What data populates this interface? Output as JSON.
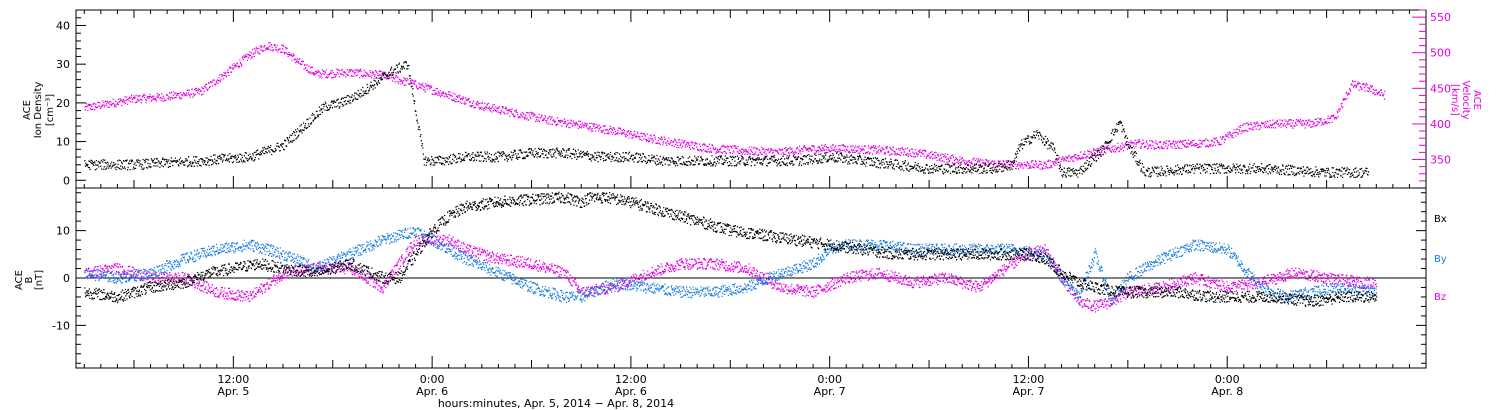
{
  "colors": {
    "black": "#000000",
    "magenta": "#e400e4",
    "blue": "#1a7fe0"
  },
  "top_panel": {
    "ylabel_lines": [
      "ACE",
      "Ion Density",
      "[cm⁻³]"
    ],
    "y2label_lines": [
      "ACE",
      "Velocity",
      "[km/s]"
    ]
  },
  "bottom_panel": {
    "ylabel_lines": [
      "ACE",
      "B",
      "[nT]"
    ],
    "legend": [
      "Bx",
      "By",
      "Bz"
    ]
  },
  "xaxis": {
    "ticks": [
      {
        "time": "12:00",
        "date": "Apr. 5"
      },
      {
        "time": "0:00",
        "date": "Apr. 6"
      },
      {
        "time": "12:00",
        "date": "Apr. 6"
      },
      {
        "time": "0:00",
        "date": "Apr. 7"
      },
      {
        "time": "12:00",
        "date": "Apr. 7"
      },
      {
        "time": "0:00",
        "date": "Apr. 8"
      }
    ],
    "title": "hours:minutes, Apr.  5, 2014 − Apr.  8, 2014"
  },
  "chart_data": [
    {
      "type": "scatter",
      "panel": "top",
      "xlabel": "hours:minutes, Apr.  5, 2014 − Apr.  8, 2014",
      "ylabel": "ACE Ion Density [cm⁻³]",
      "y2label": "ACE Velocity [km/s]",
      "xlim": [
        2.5,
        84
      ],
      "ylim": [
        -2,
        44
      ],
      "y_ticks": [
        0,
        10,
        20,
        30,
        40
      ],
      "y2lim": [
        310,
        560
      ],
      "y2_ticks": [
        350,
        400,
        450,
        500,
        550
      ],
      "x_unit": "hours from 0:00 Apr. 5, 2014",
      "series": [
        {
          "axis": "left",
          "color": "#000000",
          "x": [
            3,
            6,
            10,
            13,
            15,
            16.5,
            17.5,
            18.5,
            19.5,
            20.5,
            21.5,
            22.5,
            23.5,
            24.5,
            26,
            28,
            30,
            32,
            34,
            36,
            38,
            40,
            42,
            44,
            46,
            48,
            50,
            52,
            54,
            56,
            58,
            59,
            59.5,
            60.5,
            61.5,
            62,
            63,
            64.5,
            65.5,
            66,
            67,
            70,
            74,
            78,
            80.5
          ],
          "y": [
            4,
            4,
            5,
            6,
            9,
            15,
            19,
            20,
            22,
            25,
            28,
            30,
            5,
            5,
            6,
            6,
            7,
            7,
            6,
            6,
            5,
            5,
            5,
            5,
            5,
            6,
            5,
            4,
            3,
            3,
            3,
            4,
            9,
            12,
            8,
            2,
            2,
            8,
            15,
            9,
            2,
            3,
            3,
            2,
            2
          ]
        },
        {
          "axis": "right",
          "color": "#e400e4",
          "x": [
            3,
            6,
            8,
            10,
            11.5,
            13,
            14,
            15,
            16,
            17,
            19,
            21,
            23,
            25,
            27,
            29,
            31,
            33,
            35,
            37,
            39,
            41,
            43,
            45,
            47,
            49,
            51,
            53,
            55,
            57,
            59,
            61,
            63,
            65,
            66.5,
            68,
            70,
            71.5,
            73,
            75,
            77,
            78.5,
            79.5,
            80.5,
            81.5
          ],
          "y": [
            422,
            435,
            438,
            445,
            470,
            497,
            510,
            505,
            485,
            470,
            472,
            468,
            455,
            440,
            425,
            415,
            405,
            398,
            390,
            380,
            372,
            365,
            362,
            360,
            365,
            365,
            363,
            360,
            352,
            345,
            343,
            342,
            355,
            365,
            372,
            370,
            372,
            375,
            395,
            400,
            400,
            408,
            455,
            450,
            440
          ]
        }
      ]
    },
    {
      "type": "line",
      "panel": "bottom",
      "ylabel": "ACE B [nT]",
      "xlim": [
        2.5,
        84
      ],
      "ylim": [
        -19,
        19
      ],
      "y_ticks": [
        -10,
        0,
        10
      ],
      "x_unit": "hours from 0:00 Apr. 5, 2014",
      "series": [
        {
          "name": "Bx",
          "color": "#000000",
          "x": [
            3,
            5,
            7,
            9,
            10.5,
            12,
            13.5,
            15,
            17,
            19,
            21,
            22,
            23,
            24,
            25,
            26,
            28,
            30,
            32,
            33,
            33.5,
            34.5,
            36,
            38,
            40,
            42,
            44,
            46,
            48,
            50,
            52,
            54,
            56,
            58,
            60,
            61,
            62,
            63,
            64,
            65.5,
            67,
            69,
            71,
            73,
            75,
            77,
            79,
            80,
            81
          ],
          "y": [
            -3,
            -4,
            -2,
            -1,
            1,
            2,
            3,
            2,
            1,
            3,
            0,
            0,
            5,
            10,
            13,
            15,
            16,
            16.5,
            17,
            16,
            17,
            17,
            16,
            14,
            12,
            10,
            9,
            8,
            7,
            6,
            5,
            5,
            5,
            5,
            5,
            4,
            1,
            -1,
            -2,
            -3,
            -3,
            -3,
            -4,
            -4,
            -4,
            -5,
            -4,
            -4,
            -4
          ]
        },
        {
          "name": "By",
          "color": "#1a7fe0",
          "x": [
            3,
            5,
            7,
            9,
            11,
            13,
            15,
            17,
            19,
            21,
            22,
            23,
            24,
            26,
            28,
            30,
            32,
            33,
            35,
            37,
            39,
            41,
            43,
            45,
            47,
            48,
            49,
            51,
            53,
            55,
            57,
            59,
            61,
            62,
            63,
            64,
            65,
            66,
            68,
            70,
            72,
            74,
            75.5,
            77,
            79,
            81
          ],
          "y": [
            1,
            0,
            1,
            4,
            6,
            7,
            5,
            2,
            5,
            8,
            9,
            10,
            8,
            4,
            1,
            -2,
            -4,
            -4,
            -1,
            -2,
            -3,
            -3,
            -2,
            1,
            3,
            6,
            7,
            7,
            6,
            6,
            6,
            6,
            5,
            0,
            -4,
            5,
            -5,
            0,
            4,
            7,
            6,
            -2,
            -4,
            -3,
            -2,
            -3
          ]
        },
        {
          "name": "Bz",
          "color": "#e400e4",
          "x": [
            3,
            5,
            7,
            9,
            11,
            13,
            15,
            17,
            19,
            21,
            23,
            24,
            25,
            26,
            28,
            30,
            32,
            33,
            35,
            37,
            39,
            41,
            43,
            45,
            47,
            49,
            51,
            53,
            55,
            57,
            59,
            60,
            61,
            62,
            63,
            64,
            65,
            66,
            68,
            70,
            72,
            74,
            76,
            78,
            80,
            81
          ],
          "y": [
            1,
            2,
            0,
            0,
            -3,
            -4,
            1,
            2,
            2,
            -2,
            8,
            8,
            8,
            6,
            4,
            3,
            1,
            -3,
            -2,
            1,
            3,
            3,
            2,
            -2,
            -3,
            0,
            1,
            -1,
            0,
            -2,
            3,
            5,
            6,
            0,
            -5,
            -6,
            -5,
            -3,
            -2,
            0,
            -2,
            -1,
            1,
            0,
            -1,
            -1
          ]
        }
      ]
    }
  ]
}
